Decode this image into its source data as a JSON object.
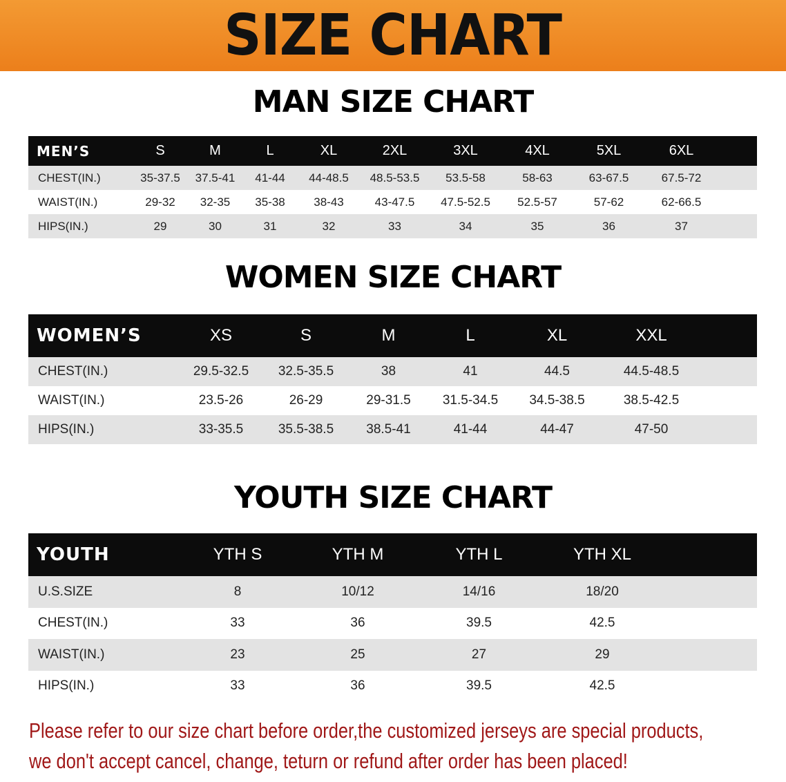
{
  "banner": "SIZE CHART",
  "men": {
    "title": "MAN SIZE CHART",
    "header": [
      "MEN’S",
      "S",
      "M",
      "L",
      "XL",
      "2XL",
      "3XL",
      "4XL",
      "5XL",
      "6XL"
    ],
    "rows": [
      [
        "CHEST(IN.)",
        "35-37.5",
        "37.5-41",
        "41-44",
        "44-48.5",
        "48.5-53.5",
        "53.5-58",
        "58-63",
        "63-67.5",
        "67.5-72"
      ],
      [
        "WAIST(IN.)",
        "29-32",
        "32-35",
        "35-38",
        "38-43",
        "43-47.5",
        "47.5-52.5",
        "52.5-57",
        "57-62",
        "62-66.5"
      ],
      [
        "HIPS(IN.)",
        "29",
        "30",
        "31",
        "32",
        "33",
        "34",
        "35",
        "36",
        "37"
      ]
    ]
  },
  "women": {
    "title": "WOMEN SIZE CHART",
    "header": [
      "WOMEN’S",
      "XS",
      "S",
      "M",
      "L",
      "XL",
      "XXL"
    ],
    "rows": [
      [
        "CHEST(IN.)",
        "29.5-32.5",
        "32.5-35.5",
        "38",
        "41",
        "44.5",
        "44.5-48.5"
      ],
      [
        "WAIST(IN.)",
        "23.5-26",
        "26-29",
        "29-31.5",
        "31.5-34.5",
        "34.5-38.5",
        "38.5-42.5"
      ],
      [
        "HIPS(IN.)",
        "33-35.5",
        "35.5-38.5",
        "38.5-41",
        "41-44",
        "44-47",
        "47-50"
      ]
    ]
  },
  "youth": {
    "title": "YOUTH SIZE CHART",
    "header": [
      "YOUTH",
      "YTH S",
      "YTH M",
      "YTH L",
      "YTH XL"
    ],
    "rows": [
      [
        "U.S.SIZE",
        "8",
        "10/12",
        "14/16",
        "18/20"
      ],
      [
        "CHEST(IN.)",
        "33",
        "36",
        "39.5",
        "42.5"
      ],
      [
        "WAIST(IN.)",
        "23",
        "25",
        "27",
        "29"
      ],
      [
        "HIPS(IN.)",
        "33",
        "36",
        "39.5",
        "42.5"
      ]
    ]
  },
  "note": {
    "line1": "Please refer to our size chart before order,the customized jerseys are special products,",
    "line2": "we don't accept cancel, change, teturn or refund after order has been placed!"
  },
  "colors": {
    "banner": "#ef8a24",
    "header_row": "#0c0c0c",
    "stripe": "#e3e3e3",
    "note": "#a01818"
  }
}
